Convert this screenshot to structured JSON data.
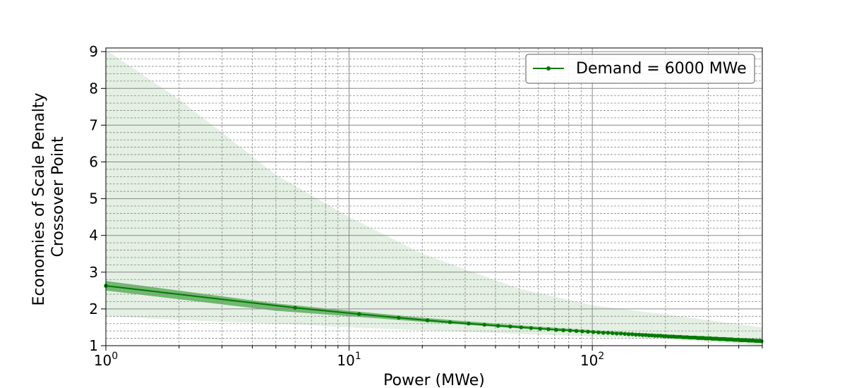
{
  "chart_data": {
    "type": "line",
    "xscale": "log",
    "xlabel": "Power (MWe)",
    "ylabel_lines": [
      "Economies of Scale Penalty",
      "Crossover Point"
    ],
    "xlim": [
      1,
      500
    ],
    "ylim": [
      1,
      9.1
    ],
    "x_ticks": [
      1,
      10,
      100
    ],
    "x_tick_labels": [
      {
        "base": "10",
        "exp": "0"
      },
      {
        "base": "10",
        "exp": "1"
      },
      {
        "base": "10",
        "exp": "2"
      }
    ],
    "y_ticks": [
      1,
      2,
      3,
      4,
      5,
      6,
      7,
      8,
      9
    ],
    "y_tick_labels": [
      "1",
      "2",
      "3",
      "4",
      "5",
      "6",
      "7",
      "8",
      "9"
    ],
    "grid": {
      "major": true,
      "minor": true
    },
    "legend_placement": "top-right",
    "colors": {
      "line": "#007a00",
      "inner_band": "#4ca64c",
      "outer_band": "#e3f0e3",
      "grid": "#888888"
    },
    "series": [
      {
        "name": "Demand = 6000 MWe",
        "x": [
          1,
          6,
          11,
          16,
          21,
          26,
          31,
          36,
          41,
          46,
          51,
          56,
          61,
          66,
          71,
          76,
          81,
          86,
          91,
          96,
          101,
          106,
          111,
          116,
          121,
          126,
          131,
          136,
          141,
          146,
          151,
          156,
          161,
          166,
          171,
          176,
          181,
          186,
          191,
          196,
          201,
          206,
          211,
          216,
          221,
          226,
          231,
          236,
          241,
          246,
          251,
          256,
          261,
          266,
          271,
          276,
          281,
          286,
          291,
          296,
          301,
          306,
          311,
          316,
          321,
          326,
          331,
          336,
          341,
          346,
          351,
          356,
          361,
          366,
          371,
          376,
          381,
          386,
          391,
          396,
          401,
          406,
          411,
          416,
          421,
          426,
          431,
          436,
          441,
          446,
          451,
          456,
          461,
          466,
          471,
          476,
          481,
          486,
          491,
          496
        ],
        "y": [
          2.63,
          2.03,
          1.86,
          1.76,
          1.69,
          1.64,
          1.6,
          1.57,
          1.54,
          1.52,
          1.5,
          1.48,
          1.46,
          1.45,
          1.43,
          1.42,
          1.41,
          1.4,
          1.39,
          1.38,
          1.37,
          1.36,
          1.35,
          1.35,
          1.34,
          1.33,
          1.33,
          1.32,
          1.31,
          1.31,
          1.3,
          1.3,
          1.29,
          1.29,
          1.28,
          1.28,
          1.27,
          1.27,
          1.27,
          1.26,
          1.26,
          1.25,
          1.25,
          1.25,
          1.24,
          1.24,
          1.24,
          1.23,
          1.23,
          1.23,
          1.22,
          1.22,
          1.22,
          1.22,
          1.21,
          1.21,
          1.21,
          1.21,
          1.2,
          1.2,
          1.2,
          1.2,
          1.19,
          1.19,
          1.19,
          1.19,
          1.18,
          1.18,
          1.18,
          1.18,
          1.18,
          1.17,
          1.17,
          1.17,
          1.17,
          1.17,
          1.16,
          1.16,
          1.16,
          1.16,
          1.16,
          1.15,
          1.15,
          1.15,
          1.15,
          1.15,
          1.15,
          1.14,
          1.14,
          1.14,
          1.14,
          1.14,
          1.14,
          1.13,
          1.13,
          1.13,
          1.13,
          1.13,
          1.13,
          1.12
        ]
      }
    ],
    "inner_band": {
      "x": [
        1,
        5,
        10,
        20,
        50,
        100,
        200,
        500
      ],
      "low": [
        2.5,
        1.95,
        1.8,
        1.65,
        1.47,
        1.36,
        1.25,
        1.1
      ],
      "high": [
        2.76,
        2.15,
        1.95,
        1.76,
        1.55,
        1.42,
        1.3,
        1.14
      ]
    },
    "outer_band": {
      "x": [
        1,
        2,
        3,
        5,
        10,
        20,
        50,
        100,
        200,
        500
      ],
      "low": [
        1.8,
        1.7,
        1.65,
        1.6,
        1.5,
        1.42,
        1.32,
        1.25,
        1.18,
        1.0
      ],
      "high": [
        9.05,
        7.7,
        6.8,
        5.65,
        4.5,
        3.5,
        2.55,
        2.1,
        1.85,
        1.5
      ]
    }
  }
}
